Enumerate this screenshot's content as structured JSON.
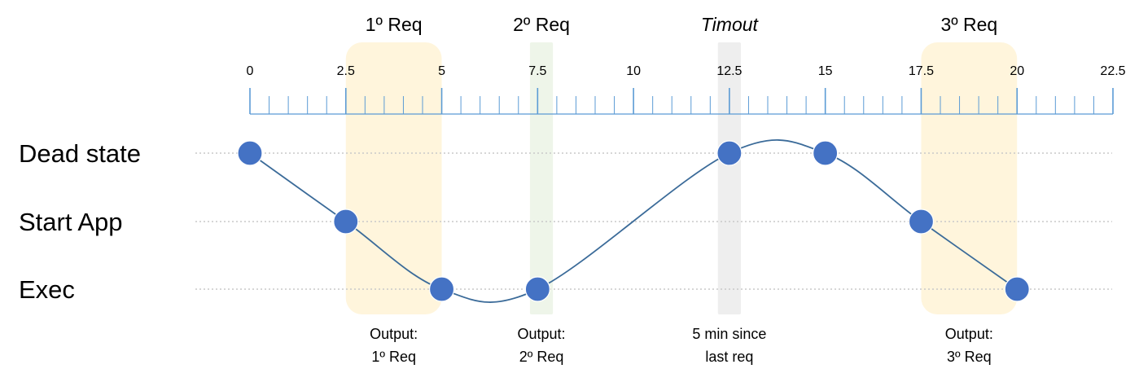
{
  "colors": {
    "axis": "#5b9bd5",
    "curve": "#3b6b99",
    "node": "#4472c4",
    "grid_dotted": "#c9c9c9",
    "req_band": "#fff5dc",
    "req2_band": "#eef5e9",
    "timeout_band": "#eeeeee"
  },
  "timeline": {
    "min": 0,
    "max": 22.5,
    "major_step": 2.5,
    "minor_step": 0.5,
    "tick_labels": [
      "0",
      "2.5",
      "5",
      "7.5",
      "10",
      "12.5",
      "15",
      "17.5",
      "20",
      "22.5"
    ]
  },
  "states": [
    {
      "key": "dead",
      "label": "Dead state"
    },
    {
      "key": "start",
      "label": "Start App"
    },
    {
      "key": "exec",
      "label": "Exec"
    }
  ],
  "phases": [
    {
      "label": "1º Req",
      "italic": false,
      "start": 2.5,
      "end": 5,
      "color_key": "req_band",
      "note": [
        "Output:",
        "1º Req"
      ]
    },
    {
      "label": "2º Req",
      "italic": false,
      "start": 7.3,
      "end": 7.9,
      "color_key": "req2_band",
      "note": [
        "Output:",
        "2º Req"
      ]
    },
    {
      "label": "Timout",
      "italic": true,
      "start": 12.2,
      "end": 12.8,
      "color_key": "timeout_band",
      "note": [
        "5 min since",
        "last req"
      ]
    },
    {
      "label": "3º Req",
      "italic": false,
      "start": 17.5,
      "end": 20,
      "color_key": "req_band",
      "note": [
        "Output:",
        "3º Req"
      ]
    }
  ],
  "points": [
    {
      "t": 0,
      "state": "dead"
    },
    {
      "t": 2.5,
      "state": "start"
    },
    {
      "t": 5,
      "state": "exec"
    },
    {
      "t": 7.5,
      "state": "exec"
    },
    {
      "t": 12.5,
      "state": "dead"
    },
    {
      "t": 15,
      "state": "dead"
    },
    {
      "t": 17.5,
      "state": "start"
    },
    {
      "t": 20,
      "state": "exec"
    }
  ]
}
